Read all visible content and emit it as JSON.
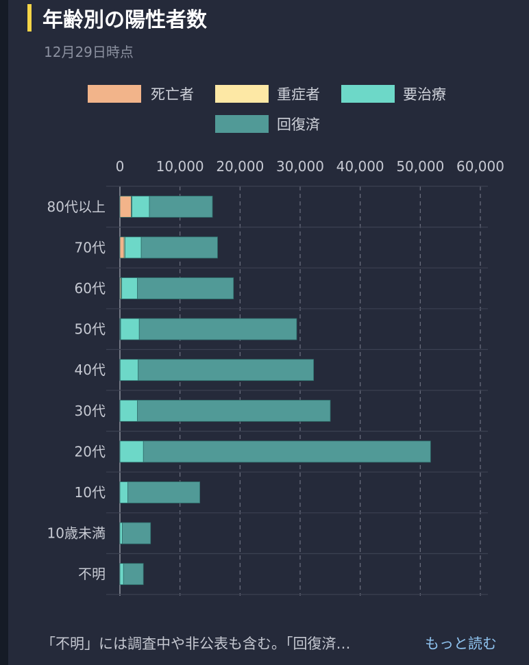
{
  "header": {
    "title": "年齢別の陽性者数",
    "subtitle": "12月29日時点"
  },
  "footer": {
    "note": "「不明」には調査中や非公表も含む。「回復済…",
    "more_label": "もっと読む"
  },
  "colors": {
    "accent": "#f5d547",
    "deaths": "#f2b48a",
    "severe": "#fde8a5",
    "treatment": "#6dd8c8",
    "recovered": "#519a97"
  },
  "chart_data": {
    "type": "bar",
    "orientation": "horizontal",
    "stacked": true,
    "categories": [
      "80代以上",
      "70代",
      "60代",
      "50代",
      "40代",
      "30代",
      "20代",
      "10代",
      "10歳未満",
      "不明"
    ],
    "series": [
      {
        "name": "死亡者",
        "color": "#f2b48a",
        "values": [
          1900,
          700,
          200,
          60,
          20,
          10,
          5,
          0,
          0,
          0
        ]
      },
      {
        "name": "重症者",
        "color": "#fde8a5",
        "values": [
          100,
          150,
          100,
          60,
          20,
          10,
          5,
          0,
          0,
          0
        ]
      },
      {
        "name": "要治療",
        "color": "#6dd8c8",
        "values": [
          2900,
          2700,
          2600,
          3100,
          3000,
          2900,
          3900,
          1300,
          400,
          600
        ]
      },
      {
        "name": "回復済",
        "color": "#519a97",
        "values": [
          10500,
          12700,
          16000,
          26200,
          29200,
          32100,
          47800,
          12000,
          4700,
          3300
        ]
      }
    ],
    "xlim": [
      0,
      60000
    ],
    "xticks": [
      0,
      10000,
      20000,
      30000,
      40000,
      50000,
      60000
    ],
    "xtick_labels": [
      "0",
      "10,000",
      "20,000",
      "30,000",
      "40,000",
      "50,000",
      "60,000"
    ],
    "legend_position": "top",
    "grid": true
  }
}
